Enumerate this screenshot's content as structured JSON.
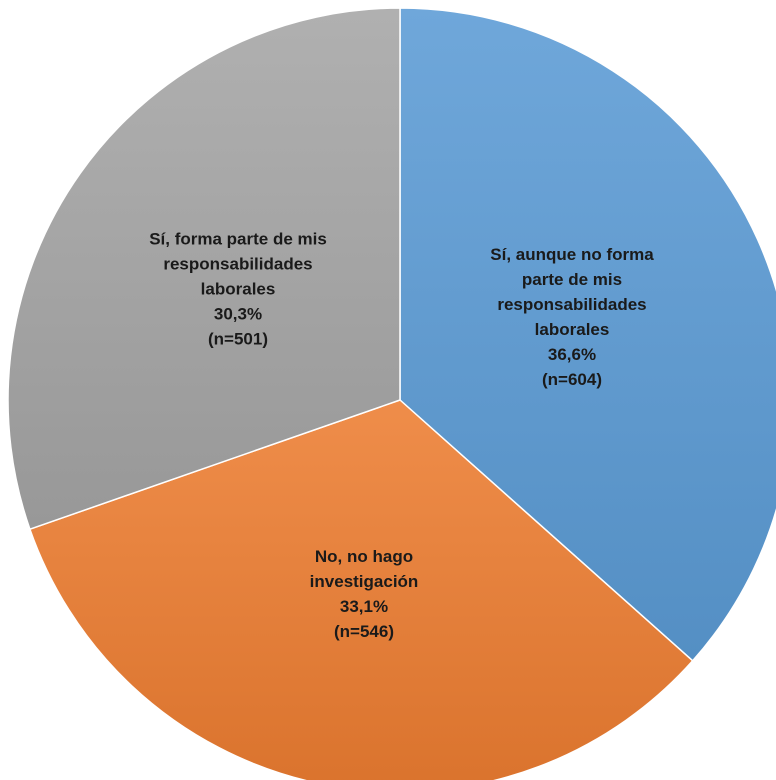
{
  "chart_data": {
    "type": "pie",
    "title": "",
    "slices": [
      {
        "label": "Sí, aunque no forma parte de mis responsabilidades laborales",
        "label_lines": [
          "Sí, aunque no forma",
          "parte de mis",
          "responsabilidades",
          "laborales"
        ],
        "percent_text": "36,6%",
        "count_text": "(n=604)",
        "value": 604,
        "percent": 36.6,
        "color": "#5B9BD5"
      },
      {
        "label": "No, no hago investigación",
        "label_lines": [
          "No, no hago",
          "investigación"
        ],
        "percent_text": "33,1%",
        "count_text": "(n=546)",
        "value": 546,
        "percent": 33.1,
        "color": "#ED7D31"
      },
      {
        "label": "Sí, forma parte de mis responsabilidades laborales",
        "label_lines": [
          "Sí, forma parte de mis",
          "responsabilidades",
          "laborales"
        ],
        "percent_text": "30,3%",
        "count_text": "(n=501)",
        "value": 501,
        "percent": 30.3,
        "color": "#A5A5A5"
      }
    ],
    "start_angle_deg": 0,
    "direction": "clockwise",
    "legend": "none",
    "data_labels": "inside"
  }
}
